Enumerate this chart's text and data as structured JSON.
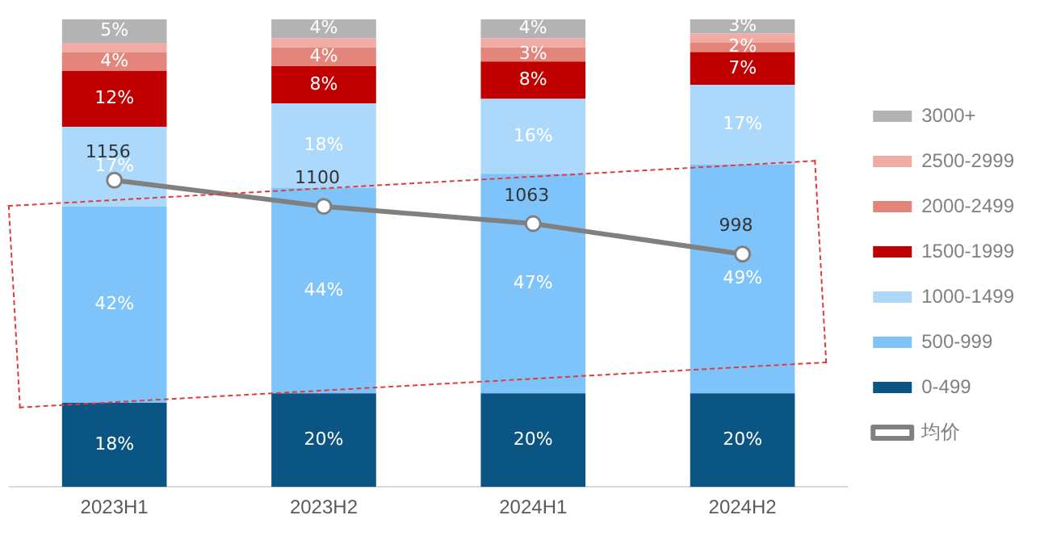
{
  "chart_data": {
    "type": "bar",
    "stacked": true,
    "categories": [
      "2023H1",
      "2023H2",
      "2024H1",
      "2024H2"
    ],
    "ylim": [
      0,
      100
    ],
    "y2lim": [
      500,
      1500
    ],
    "tick_labels": "x",
    "grid": false,
    "legend": "right",
    "series": [
      {
        "name": "0-499",
        "color": "#0b5584",
        "values": [
          18,
          20,
          20,
          20
        ],
        "value_labels": [
          "18%",
          "20%",
          "20%",
          "20%"
        ]
      },
      {
        "name": "500-999",
        "color": "#7fc3fb",
        "values": [
          42,
          44,
          47,
          49
        ],
        "value_labels": [
          "42%",
          "44%",
          "47%",
          "49%"
        ]
      },
      {
        "name": "1000-1499",
        "color": "#acd8fb",
        "values": [
          17,
          18,
          16,
          17
        ],
        "value_labels": [
          "17%",
          "18%",
          "16%",
          "17%"
        ]
      },
      {
        "name": "1500-1999",
        "color": "#c00000",
        "values": [
          12,
          8,
          8,
          7
        ],
        "value_labels": [
          "12%",
          "8%",
          "8%",
          "7%"
        ]
      },
      {
        "name": "2000-2499",
        "color": "#e3857b",
        "values": [
          4,
          4,
          3,
          2
        ],
        "value_labels": [
          "4%",
          "4%",
          "3%",
          "2%"
        ]
      },
      {
        "name": "2500-2999",
        "color": "#f0aba4",
        "values": [
          2,
          2,
          2,
          2
        ],
        "value_labels": [
          null,
          null,
          null,
          null
        ]
      },
      {
        "name": "3000+",
        "color": "#b3b3b3",
        "values": [
          5,
          4,
          4,
          3
        ],
        "value_labels": [
          "5%",
          "4%",
          "4%",
          "3%"
        ]
      },
      {
        "name": "均价",
        "type": "line",
        "axis": "y2",
        "marker": "circle",
        "color": "#808080",
        "values": [
          1156,
          1100,
          1063,
          998
        ],
        "value_labels": [
          "1156",
          "1100",
          "1063",
          "998"
        ]
      }
    ]
  }
}
